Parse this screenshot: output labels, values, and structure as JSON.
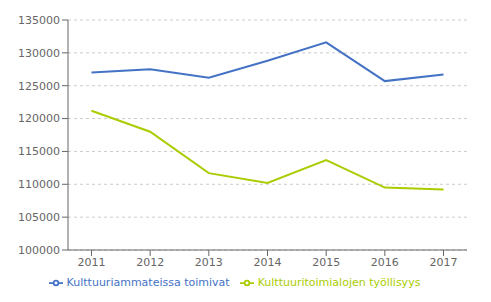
{
  "chart_data": {
    "type": "line",
    "x": [
      2011,
      2012,
      2013,
      2014,
      2015,
      2016,
      2017
    ],
    "series": [
      {
        "name": "Kulttuuriammateissa toimivat",
        "color": "#4472C4",
        "values": [
          127000,
          127500,
          126200,
          128800,
          131600,
          125700,
          126700
        ]
      },
      {
        "name": "Kulttuuritoimialojen työllisyys",
        "color": "#AACC00",
        "values": [
          121200,
          118000,
          111700,
          110200,
          113700,
          109500,
          109200
        ]
      }
    ],
    "xlim": [
      2010.6,
      2017.4
    ],
    "xticks": [
      2011,
      2012,
      2013,
      2014,
      2015,
      2016,
      2017
    ],
    "ylim": [
      100000,
      135000
    ],
    "yticks": [
      100000,
      105000,
      110000,
      115000,
      120000,
      125000,
      130000,
      135000
    ],
    "grid": true,
    "legend": "bottom"
  }
}
